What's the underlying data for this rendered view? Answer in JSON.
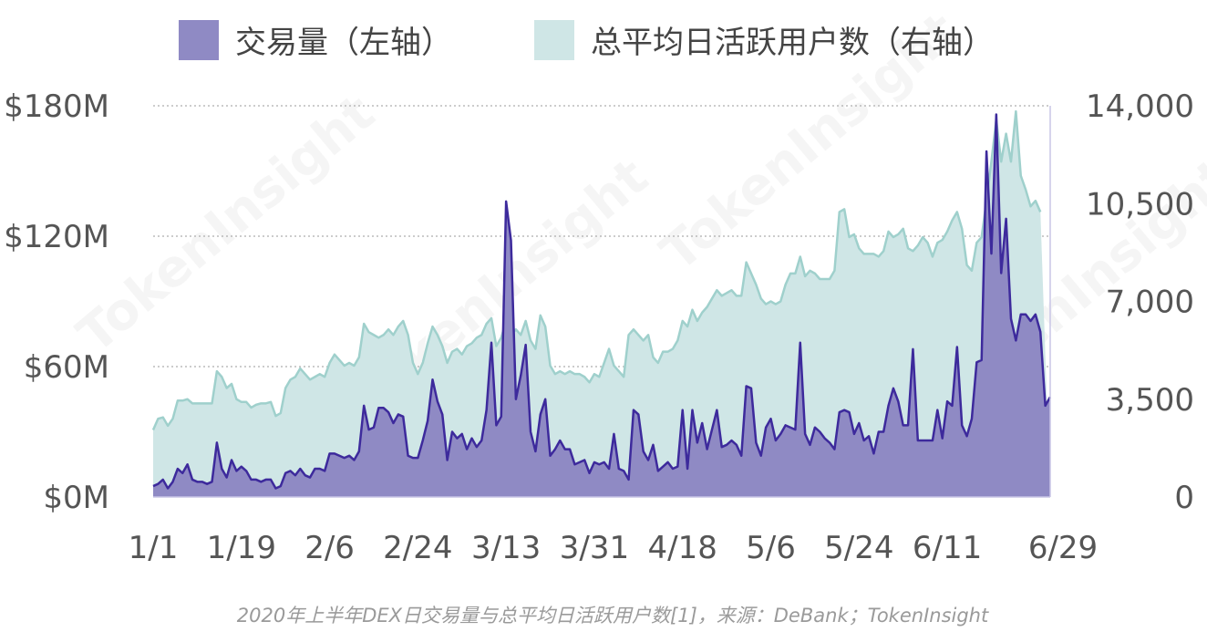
{
  "legend": {
    "volume_label": "交易量（左轴）",
    "users_label": "总平均日活跃用户数（右轴）"
  },
  "caption": "2020年上半年DEX日交易量与总平均日活跃用户数[1]，来源：DeBank；TokenInsight",
  "watermark": "TokenInsight",
  "colors": {
    "volume_line": "#3d2a9c",
    "volume_fill": "#8f8ac4",
    "users_line": "#9fd0cc",
    "users_fill": "#cfe6e6"
  },
  "chart_data": {
    "type": "area",
    "x_ticks": [
      "1/1",
      "1/19",
      "2/6",
      "2/24",
      "3/13",
      "3/31",
      "4/18",
      "5/6",
      "5/24",
      "6/11",
      "6/29"
    ],
    "left_axis": {
      "ticks": [
        "$0M",
        "$60M",
        "$120M",
        "$180M"
      ],
      "range": [
        0,
        180
      ]
    },
    "right_axis": {
      "ticks": [
        "0",
        "3,500",
        "7,000",
        "10,500",
        "14,000"
      ],
      "range": [
        0,
        14000
      ]
    },
    "grid": true,
    "legend_position": "top",
    "series": [
      {
        "name": "交易量（左轴）",
        "axis": "left",
        "values": [
          5,
          6,
          8,
          4,
          7,
          13,
          11,
          15,
          8,
          7,
          7,
          6,
          7,
          25,
          13,
          9,
          17,
          12,
          14,
          12,
          8,
          8,
          7,
          8,
          8,
          4,
          5,
          11,
          12,
          10,
          13,
          10,
          9,
          13,
          13,
          12,
          20,
          20,
          19,
          18,
          19,
          17,
          21,
          42,
          31,
          32,
          41,
          41,
          39,
          34,
          38,
          37,
          19,
          18,
          18,
          26,
          35,
          54,
          44,
          38,
          17,
          30,
          27,
          29,
          22,
          27,
          23,
          26,
          40,
          71,
          33,
          37,
          136,
          118,
          45,
          56,
          70,
          30,
          21,
          38,
          45,
          19,
          22,
          26,
          22,
          22,
          15,
          16,
          17,
          11,
          16,
          15,
          16,
          13,
          29,
          13,
          12,
          8,
          40,
          38,
          21,
          17,
          24,
          12,
          14,
          16,
          13,
          14,
          40,
          13,
          40,
          25,
          34,
          22,
          31,
          40,
          23,
          24,
          26,
          24,
          19,
          51,
          50,
          25,
          19,
          32,
          36,
          26,
          29,
          33,
          32,
          31,
          71,
          29,
          24,
          32,
          30,
          27,
          25,
          22,
          39,
          40,
          39,
          29,
          34,
          26,
          28,
          20,
          30,
          30,
          42,
          50,
          44,
          33,
          33,
          68,
          26,
          26,
          26,
          26,
          40,
          27,
          44,
          42,
          69,
          33,
          28,
          36,
          62,
          63,
          159,
          112,
          176,
          103,
          128,
          82,
          72,
          84,
          84,
          81,
          84,
          76,
          42,
          46
        ]
      },
      {
        "name": "总平均日活跃用户数（右轴）",
        "axis": "right",
        "values": [
          2400,
          2800,
          2850,
          2550,
          2800,
          3450,
          3450,
          3500,
          3350,
          3350,
          3350,
          3350,
          3350,
          4500,
          4300,
          3900,
          4050,
          3500,
          3400,
          3400,
          3200,
          3300,
          3350,
          3350,
          3400,
          2900,
          3000,
          3900,
          4200,
          4300,
          4600,
          4400,
          4200,
          4300,
          4400,
          4300,
          4800,
          5100,
          4900,
          4700,
          4800,
          4700,
          5000,
          6200,
          5900,
          5800,
          5700,
          5800,
          6000,
          5800,
          6100,
          6300,
          5800,
          4800,
          4400,
          4800,
          5500,
          6100,
          5800,
          5400,
          4800,
          5200,
          5300,
          5100,
          5400,
          5500,
          5700,
          5800,
          6200,
          6400,
          5400,
          5700,
          6300,
          5800,
          6000,
          5800,
          6300,
          5600,
          5300,
          6500,
          6100,
          4700,
          4400,
          4500,
          4400,
          4500,
          4400,
          4400,
          4300,
          4100,
          4400,
          4300,
          4800,
          5300,
          4700,
          4500,
          4300,
          5800,
          6000,
          5800,
          5600,
          5800,
          5000,
          4800,
          5200,
          5200,
          5300,
          5600,
          6300,
          6100,
          6700,
          6300,
          6600,
          6800,
          7100,
          7400,
          7200,
          7300,
          7400,
          7200,
          7200,
          8400,
          8000,
          7600,
          7100,
          6900,
          7000,
          6900,
          7000,
          7600,
          8000,
          8000,
          8600,
          7900,
          8100,
          8000,
          7800,
          7800,
          7800,
          8100,
          10200,
          10300,
          9300,
          9400,
          8900,
          8700,
          8700,
          8700,
          8600,
          8800,
          9500,
          9300,
          9400,
          9600,
          8900,
          8800,
          9000,
          9300,
          9100,
          8600,
          9100,
          9200,
          9500,
          9900,
          10200,
          9600,
          8300,
          8100,
          9100,
          9300,
          10600,
          12000,
          13500,
          12000,
          13000,
          12000,
          13800,
          11500,
          11000,
          10400,
          10600,
          10200
        ]
      }
    ]
  }
}
